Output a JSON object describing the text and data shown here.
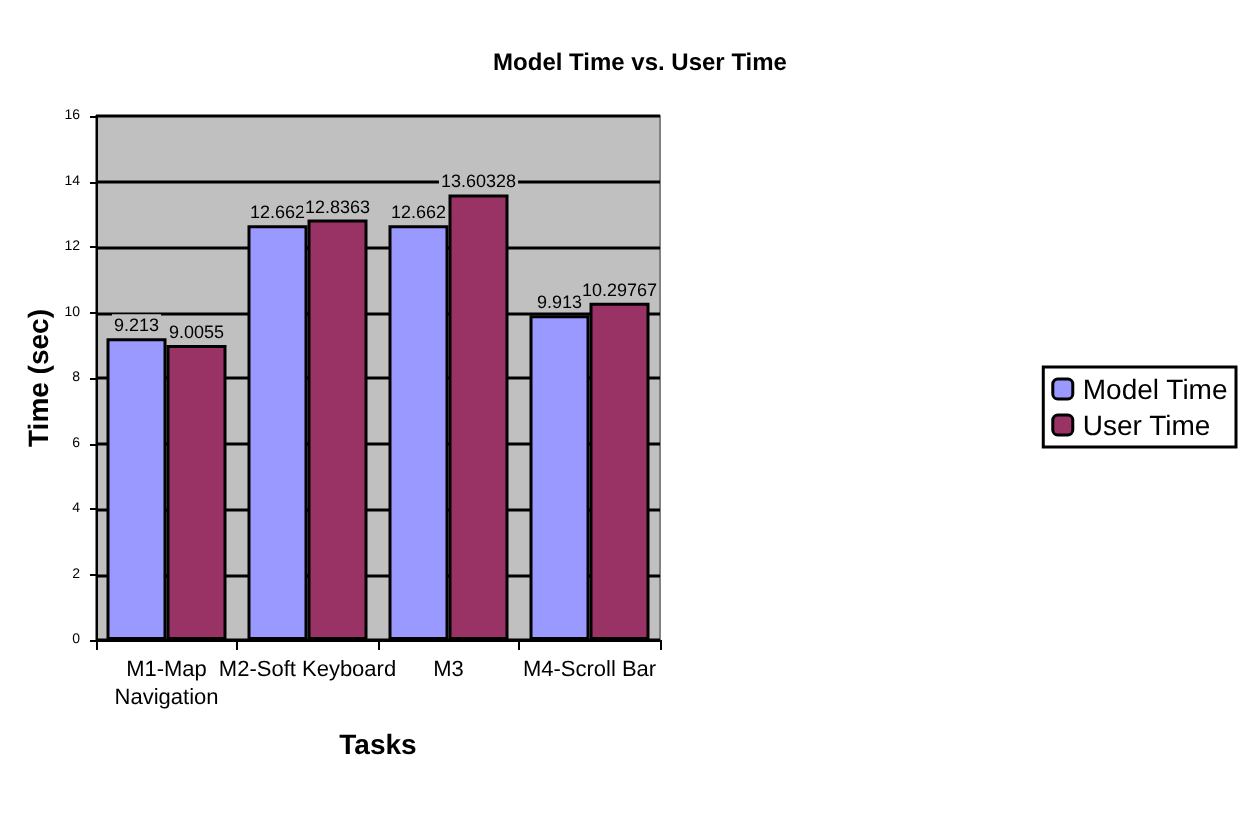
{
  "chart_data": {
    "type": "bar",
    "title": "Model Time vs. User Time",
    "xlabel": "Tasks",
    "ylabel": "Time (sec)",
    "categories": [
      "M1-Map\nNavigation",
      "M2-Soft Keyboard",
      "M3",
      "M4-Scroll Bar"
    ],
    "series": [
      {
        "name": "Model Time",
        "color": "#9999ff",
        "values": [
          9.213,
          12.662,
          12.662,
          9.913
        ]
      },
      {
        "name": "User Time",
        "color": "#993366",
        "values": [
          9.0055,
          12.8363,
          13.60328,
          10.29767
        ]
      }
    ],
    "ylim": [
      0,
      16
    ],
    "yticks": [
      0,
      2,
      4,
      6,
      8,
      10,
      12,
      14,
      16
    ],
    "grid": "y",
    "legend": "right",
    "data_labels": true
  }
}
